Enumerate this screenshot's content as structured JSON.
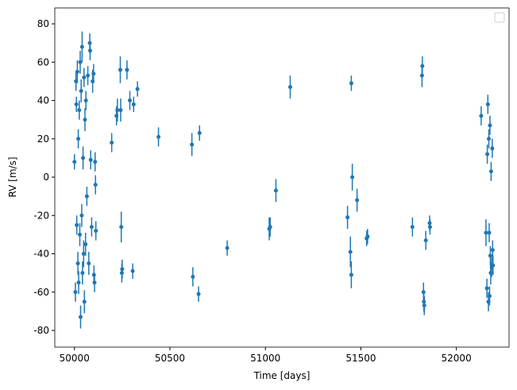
{
  "chart_data": {
    "type": "errorbar",
    "xlabel": "Time [days]",
    "ylabel": "RV [m/s]",
    "color": "#1f77b4",
    "xlim": [
      49897,
      52276
    ],
    "ylim": [
      -88.7,
      88.3
    ],
    "xticks": [
      50000,
      50500,
      51000,
      51500,
      52000
    ],
    "yticks": [
      -80,
      -60,
      -40,
      -20,
      0,
      20,
      40,
      60,
      80
    ],
    "x": [
      50000,
      50005,
      50008,
      50010,
      50012,
      50015,
      50018,
      50020,
      50022,
      50025,
      50028,
      50030,
      50032,
      50035,
      50038,
      50040,
      50042,
      50045,
      50048,
      50050,
      50052,
      50055,
      50058,
      50060,
      50065,
      50070,
      50075,
      50080,
      50082,
      50085,
      50090,
      50095,
      50100,
      50102,
      50105,
      50108,
      50110,
      50112,
      50195,
      50220,
      50225,
      50240,
      50242,
      50245,
      50248,
      50250,
      50275,
      50290,
      50305,
      50310,
      50330,
      50440,
      50615,
      50620,
      50650,
      50655,
      50800,
      51020,
      51025,
      51055,
      51130,
      51430,
      51445,
      51450,
      51450,
      51455,
      51480,
      51530,
      51535,
      51770,
      51820,
      51822,
      51828,
      51830,
      51832,
      51840,
      51860,
      51862,
      52130,
      52155,
      52160,
      52162,
      52165,
      52168,
      52170,
      52172,
      52174,
      52176,
      52178,
      52180,
      52182,
      52185,
      52188,
      52190,
      52192
    ],
    "values": [
      8,
      -60,
      50,
      38,
      -25,
      55,
      -45,
      20,
      -55,
      35,
      -30,
      60,
      -73,
      45,
      -20,
      68,
      -50,
      10,
      -40,
      52,
      -65,
      30,
      -35,
      40,
      -10,
      53,
      -45,
      70,
      66,
      9,
      -26,
      50,
      54,
      -51,
      -55,
      8,
      -4,
      -28,
      18,
      32,
      35,
      56,
      35,
      -26,
      -50,
      -48,
      56,
      40,
      -49,
      38,
      46,
      21,
      17,
      -52,
      -61,
      23,
      -37,
      -27,
      -26,
      -7,
      47,
      -21,
      -39,
      -51,
      49,
      0,
      -12,
      -32,
      -31,
      -26,
      53,
      58,
      -60,
      -65,
      -67,
      -33,
      -24,
      -26,
      32,
      -29,
      -58,
      12,
      38,
      -65,
      20,
      -29,
      -62,
      27,
      -41,
      -50,
      3,
      -47,
      15,
      -38,
      -46
    ],
    "errors": [
      4,
      5,
      5,
      4,
      5,
      6,
      6,
      5,
      6,
      5,
      6,
      6,
      6,
      6,
      6,
      8,
      6,
      6,
      7,
      5,
      6,
      6,
      6,
      5,
      5,
      5,
      6,
      5,
      5,
      5,
      5,
      6,
      5,
      5,
      5,
      5,
      5,
      5,
      5,
      5,
      6,
      7,
      6,
      8,
      5,
      5,
      5,
      5,
      4,
      4,
      4,
      5,
      6,
      5,
      4,
      4,
      4,
      6,
      5,
      6,
      6,
      6,
      8,
      7,
      4,
      7,
      6,
      4,
      4,
      5,
      6,
      5,
      5,
      5,
      5,
      5,
      4,
      4,
      5,
      7,
      5,
      5,
      5,
      5,
      5,
      5,
      5,
      5,
      5,
      6,
      5,
      5,
      5,
      5,
      5
    ],
    "legend": "upper right"
  }
}
